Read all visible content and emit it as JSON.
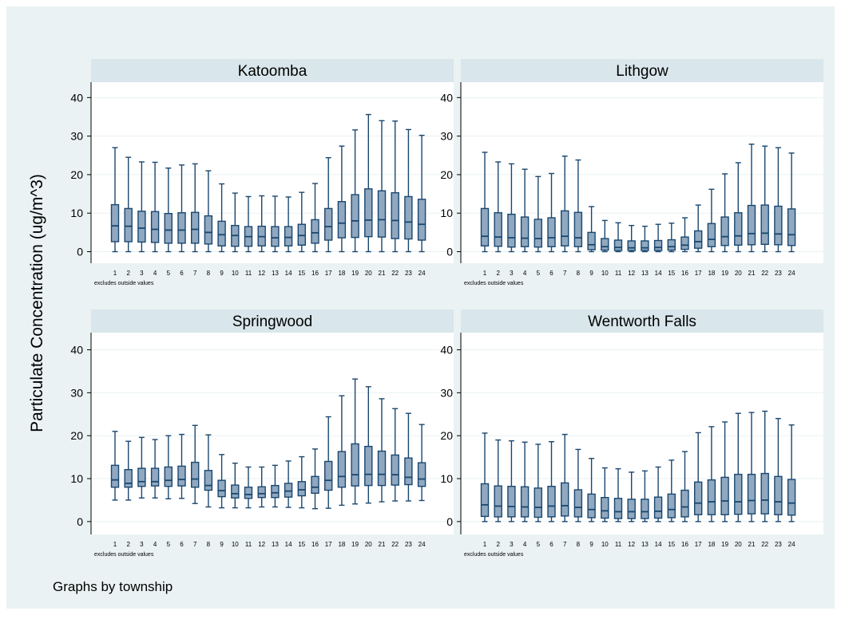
{
  "figure": {
    "ylabel": "Particulate Concentration (ug/m^3)",
    "footer": "Graphs by township",
    "note": "excludes outside values",
    "colors": {
      "outer_bg": "#eaf2f3",
      "panel_bg": "#ffffff",
      "title_bar": "#d9e6eb",
      "box_fill": "#90a8c0",
      "box_line": "#1a476f",
      "grid": "#eaf2f3",
      "axis": "#000000"
    }
  },
  "chart_data": [
    {
      "type": "box",
      "title": "Katoomba",
      "xlabel": "",
      "ylabel": "Particulate Concentration (ug/m^3)",
      "ylim": [
        -3,
        44
      ],
      "yticks": [
        0,
        10,
        20,
        30,
        40
      ],
      "grid": true,
      "categories": [
        "1",
        "2",
        "3",
        "4",
        "5",
        "6",
        "7",
        "8",
        "9",
        "10",
        "11",
        "12",
        "13",
        "14",
        "15",
        "16",
        "17",
        "18",
        "19",
        "20",
        "21",
        "22",
        "23",
        "24"
      ],
      "boxes": [
        {
          "min": 0,
          "q1": 2.6,
          "median": 6.7,
          "q3": 12.2,
          "max": 27.0
        },
        {
          "min": 0,
          "q1": 2.6,
          "median": 6.6,
          "q3": 11.2,
          "max": 24.5
        },
        {
          "min": 0,
          "q1": 2.5,
          "median": 6.1,
          "q3": 10.5,
          "max": 23.3
        },
        {
          "min": 0,
          "q1": 2.4,
          "median": 5.8,
          "q3": 10.4,
          "max": 23.2
        },
        {
          "min": 0,
          "q1": 2.2,
          "median": 5.6,
          "q3": 9.9,
          "max": 21.7
        },
        {
          "min": 0,
          "q1": 2.2,
          "median": 5.6,
          "q3": 10.1,
          "max": 22.5
        },
        {
          "min": 0,
          "q1": 2.2,
          "median": 5.8,
          "q3": 10.2,
          "max": 22.8
        },
        {
          "min": 0,
          "q1": 2.0,
          "median": 5.0,
          "q3": 9.3,
          "max": 21.0
        },
        {
          "min": 0,
          "q1": 1.5,
          "median": 4.4,
          "q3": 7.9,
          "max": 17.6
        },
        {
          "min": 0,
          "q1": 1.4,
          "median": 4.2,
          "q3": 6.8,
          "max": 15.2
        },
        {
          "min": 0,
          "q1": 1.4,
          "median": 3.9,
          "q3": 6.5,
          "max": 14.3
        },
        {
          "min": 0,
          "q1": 1.5,
          "median": 3.9,
          "q3": 6.6,
          "max": 14.5
        },
        {
          "min": 0,
          "q1": 1.4,
          "median": 3.6,
          "q3": 6.5,
          "max": 14.4
        },
        {
          "min": 0,
          "q1": 1.5,
          "median": 3.7,
          "q3": 6.5,
          "max": 14.2
        },
        {
          "min": 0,
          "q1": 1.7,
          "median": 4.2,
          "q3": 7.1,
          "max": 15.4
        },
        {
          "min": 0,
          "q1": 2.2,
          "median": 4.9,
          "q3": 8.3,
          "max": 17.7
        },
        {
          "min": 0,
          "q1": 3.0,
          "median": 6.5,
          "q3": 11.2,
          "max": 24.4
        },
        {
          "min": 0,
          "q1": 3.6,
          "median": 7.4,
          "q3": 13.0,
          "max": 27.4
        },
        {
          "min": 0,
          "q1": 3.7,
          "median": 8.0,
          "q3": 14.8,
          "max": 31.6
        },
        {
          "min": 0,
          "q1": 3.9,
          "median": 8.2,
          "q3": 16.3,
          "max": 35.6
        },
        {
          "min": 0,
          "q1": 3.8,
          "median": 8.3,
          "q3": 15.8,
          "max": 34.0
        },
        {
          "min": 0,
          "q1": 3.4,
          "median": 8.1,
          "q3": 15.3,
          "max": 33.9
        },
        {
          "min": 0,
          "q1": 3.3,
          "median": 7.7,
          "q3": 14.3,
          "max": 31.7
        },
        {
          "min": 0,
          "q1": 3.0,
          "median": 7.1,
          "q3": 13.6,
          "max": 30.2
        }
      ]
    },
    {
      "type": "box",
      "title": "Lithgow",
      "xlabel": "",
      "ylabel": "Particulate Concentration (ug/m^3)",
      "ylim": [
        -3,
        44
      ],
      "yticks": [
        0,
        10,
        20,
        30,
        40
      ],
      "grid": true,
      "categories": [
        "1",
        "2",
        "3",
        "4",
        "5",
        "6",
        "7",
        "8",
        "9",
        "10",
        "11",
        "12",
        "13",
        "14",
        "15",
        "16",
        "17",
        "18",
        "19",
        "20",
        "21",
        "22",
        "23",
        "24"
      ],
      "boxes": [
        {
          "min": 0,
          "q1": 1.5,
          "median": 4.0,
          "q3": 11.2,
          "max": 25.8
        },
        {
          "min": 0,
          "q1": 1.4,
          "median": 3.8,
          "q3": 10.1,
          "max": 23.3
        },
        {
          "min": 0,
          "q1": 1.2,
          "median": 3.6,
          "q3": 9.7,
          "max": 22.8
        },
        {
          "min": 0,
          "q1": 1.3,
          "median": 3.5,
          "q3": 9.0,
          "max": 21.4
        },
        {
          "min": 0,
          "q1": 1.2,
          "median": 3.4,
          "q3": 8.4,
          "max": 19.5
        },
        {
          "min": 0,
          "q1": 1.3,
          "median": 3.6,
          "q3": 8.8,
          "max": 20.3
        },
        {
          "min": 0,
          "q1": 1.5,
          "median": 4.0,
          "q3": 10.6,
          "max": 24.8
        },
        {
          "min": 0,
          "q1": 1.3,
          "median": 3.6,
          "q3": 10.2,
          "max": 23.8
        },
        {
          "min": 0,
          "q1": 0.5,
          "median": 1.8,
          "q3": 5.0,
          "max": 11.7
        },
        {
          "min": 0,
          "q1": 0.4,
          "median": 1.3,
          "q3": 3.4,
          "max": 8.1
        },
        {
          "min": 0,
          "q1": 0.3,
          "median": 1.1,
          "q3": 3.0,
          "max": 7.5
        },
        {
          "min": 0,
          "q1": 0.3,
          "median": 1.0,
          "q3": 2.8,
          "max": 6.8
        },
        {
          "min": 0,
          "q1": 0.3,
          "median": 1.0,
          "q3": 2.8,
          "max": 6.6
        },
        {
          "min": 0,
          "q1": 0.3,
          "median": 1.1,
          "q3": 2.9,
          "max": 7.1
        },
        {
          "min": 0,
          "q1": 0.4,
          "median": 1.3,
          "q3": 3.1,
          "max": 7.4
        },
        {
          "min": 0,
          "q1": 0.6,
          "median": 1.7,
          "q3": 3.8,
          "max": 8.8
        },
        {
          "min": 0,
          "q1": 0.9,
          "median": 2.6,
          "q3": 5.4,
          "max": 12.1
        },
        {
          "min": 0,
          "q1": 1.3,
          "median": 3.2,
          "q3": 7.3,
          "max": 16.2
        },
        {
          "min": 0,
          "q1": 1.6,
          "median": 3.9,
          "q3": 9.0,
          "max": 20.2
        },
        {
          "min": 0,
          "q1": 1.7,
          "median": 4.1,
          "q3": 10.1,
          "max": 23.1
        },
        {
          "min": 0,
          "q1": 1.8,
          "median": 4.7,
          "q3": 12.0,
          "max": 27.9
        },
        {
          "min": 0,
          "q1": 1.9,
          "median": 4.8,
          "q3": 12.1,
          "max": 27.4
        },
        {
          "min": 0,
          "q1": 1.8,
          "median": 4.6,
          "q3": 11.8,
          "max": 27.0
        },
        {
          "min": 0,
          "q1": 1.6,
          "median": 4.4,
          "q3": 11.1,
          "max": 25.6
        }
      ]
    },
    {
      "type": "box",
      "title": "Springwood",
      "xlabel": "",
      "ylabel": "Particulate Concentration (ug/m^3)",
      "ylim": [
        -3,
        44
      ],
      "yticks": [
        0,
        10,
        20,
        30,
        40
      ],
      "grid": true,
      "categories": [
        "1",
        "2",
        "3",
        "4",
        "5",
        "6",
        "7",
        "8",
        "9",
        "10",
        "11",
        "12",
        "13",
        "14",
        "15",
        "16",
        "17",
        "18",
        "19",
        "20",
        "21",
        "22",
        "23",
        "24"
      ],
      "boxes": [
        {
          "min": 5.0,
          "q1": 8.0,
          "median": 9.7,
          "q3": 13.1,
          "max": 21.0
        },
        {
          "min": 5.0,
          "q1": 8.0,
          "median": 8.9,
          "q3": 12.1,
          "max": 18.7
        },
        {
          "min": 5.5,
          "q1": 8.2,
          "median": 9.3,
          "q3": 12.4,
          "max": 19.6
        },
        {
          "min": 5.5,
          "q1": 8.3,
          "median": 9.3,
          "q3": 12.4,
          "max": 19.1
        },
        {
          "min": 5.3,
          "q1": 8.2,
          "median": 9.6,
          "q3": 12.7,
          "max": 20.0
        },
        {
          "min": 5.4,
          "q1": 8.3,
          "median": 9.8,
          "q3": 12.9,
          "max": 20.3
        },
        {
          "min": 4.2,
          "q1": 8.0,
          "median": 9.9,
          "q3": 13.8,
          "max": 22.4
        },
        {
          "min": 3.4,
          "q1": 7.3,
          "median": 8.4,
          "q3": 11.9,
          "max": 20.2
        },
        {
          "min": 3.2,
          "q1": 5.8,
          "median": 7.2,
          "q3": 9.6,
          "max": 15.6
        },
        {
          "min": 3.2,
          "q1": 5.5,
          "median": 6.5,
          "q3": 8.5,
          "max": 13.6
        },
        {
          "min": 3.2,
          "q1": 5.4,
          "median": 6.3,
          "q3": 8.0,
          "max": 12.7
        },
        {
          "min": 3.4,
          "q1": 5.6,
          "median": 6.5,
          "q3": 8.1,
          "max": 12.7
        },
        {
          "min": 3.4,
          "q1": 5.6,
          "median": 6.7,
          "q3": 8.4,
          "max": 13.1
        },
        {
          "min": 3.3,
          "q1": 5.7,
          "median": 7.1,
          "q3": 8.9,
          "max": 14.1
        },
        {
          "min": 3.2,
          "q1": 6.0,
          "median": 7.4,
          "q3": 9.3,
          "max": 15.1
        },
        {
          "min": 3.0,
          "q1": 6.6,
          "median": 8.0,
          "q3": 10.5,
          "max": 16.9
        },
        {
          "min": 3.1,
          "q1": 7.3,
          "median": 9.6,
          "q3": 14.0,
          "max": 24.4
        },
        {
          "min": 3.8,
          "q1": 8.0,
          "median": 10.5,
          "q3": 16.3,
          "max": 29.3
        },
        {
          "min": 4.1,
          "q1": 8.3,
          "median": 10.9,
          "q3": 18.1,
          "max": 33.2
        },
        {
          "min": 4.3,
          "q1": 8.4,
          "median": 11.0,
          "q3": 17.5,
          "max": 31.4
        },
        {
          "min": 4.6,
          "q1": 8.4,
          "median": 11.0,
          "q3": 16.4,
          "max": 28.6
        },
        {
          "min": 4.8,
          "q1": 8.5,
          "median": 10.9,
          "q3": 15.5,
          "max": 26.3
        },
        {
          "min": 4.8,
          "q1": 8.6,
          "median": 10.3,
          "q3": 14.8,
          "max": 25.2
        },
        {
          "min": 4.9,
          "q1": 8.2,
          "median": 9.9,
          "q3": 13.7,
          "max": 22.6
        }
      ]
    },
    {
      "type": "box",
      "title": "Wentworth Falls",
      "xlabel": "",
      "ylabel": "Particulate Concentration (ug/m^3)",
      "ylim": [
        -3,
        44
      ],
      "yticks": [
        0,
        10,
        20,
        30,
        40
      ],
      "grid": true,
      "categories": [
        "1",
        "2",
        "3",
        "4",
        "5",
        "6",
        "7",
        "8",
        "9",
        "10",
        "11",
        "12",
        "13",
        "14",
        "15",
        "16",
        "17",
        "18",
        "19",
        "20",
        "21",
        "22",
        "23",
        "24"
      ],
      "boxes": [
        {
          "min": 0,
          "q1": 1.2,
          "median": 3.9,
          "q3": 8.8,
          "max": 20.6
        },
        {
          "min": 0,
          "q1": 1.1,
          "median": 3.6,
          "q3": 8.3,
          "max": 19.0
        },
        {
          "min": 0,
          "q1": 1.1,
          "median": 3.5,
          "q3": 8.2,
          "max": 18.8
        },
        {
          "min": 0,
          "q1": 1.1,
          "median": 3.4,
          "q3": 8.1,
          "max": 18.5
        },
        {
          "min": 0,
          "q1": 1.0,
          "median": 3.3,
          "q3": 7.8,
          "max": 18.0
        },
        {
          "min": 0,
          "q1": 1.1,
          "median": 3.6,
          "q3": 8.2,
          "max": 18.6
        },
        {
          "min": 0,
          "q1": 1.3,
          "median": 3.7,
          "q3": 9.0,
          "max": 20.3
        },
        {
          "min": 0,
          "q1": 1.1,
          "median": 3.3,
          "q3": 7.4,
          "max": 16.8
        },
        {
          "min": 0,
          "q1": 0.9,
          "median": 2.8,
          "q3": 6.4,
          "max": 14.7
        },
        {
          "min": 0,
          "q1": 0.8,
          "median": 2.5,
          "q3": 5.6,
          "max": 12.5
        },
        {
          "min": 0,
          "q1": 0.7,
          "median": 2.3,
          "q3": 5.4,
          "max": 12.3
        },
        {
          "min": 0,
          "q1": 0.7,
          "median": 2.3,
          "q3": 5.2,
          "max": 11.5
        },
        {
          "min": 0,
          "q1": 0.7,
          "median": 2.3,
          "q3": 5.2,
          "max": 11.8
        },
        {
          "min": 0,
          "q1": 0.8,
          "median": 2.4,
          "q3": 5.7,
          "max": 12.7
        },
        {
          "min": 0,
          "q1": 0.9,
          "median": 2.8,
          "q3": 6.4,
          "max": 14.3
        },
        {
          "min": 0,
          "q1": 1.1,
          "median": 3.4,
          "q3": 7.3,
          "max": 16.3
        },
        {
          "min": 0,
          "q1": 1.6,
          "median": 4.3,
          "q3": 9.2,
          "max": 20.7
        },
        {
          "min": 0,
          "q1": 1.6,
          "median": 4.6,
          "q3": 9.7,
          "max": 22.1
        },
        {
          "min": 0,
          "q1": 1.6,
          "median": 4.8,
          "q3": 10.3,
          "max": 23.2
        },
        {
          "min": 0,
          "q1": 1.7,
          "median": 4.6,
          "q3": 11.0,
          "max": 25.2
        },
        {
          "min": 0,
          "q1": 1.8,
          "median": 4.9,
          "q3": 11.0,
          "max": 25.4
        },
        {
          "min": 0,
          "q1": 1.8,
          "median": 5.0,
          "q3": 11.2,
          "max": 25.7
        },
        {
          "min": 0,
          "q1": 1.6,
          "median": 4.6,
          "q3": 10.5,
          "max": 24.0
        },
        {
          "min": 0,
          "q1": 1.5,
          "median": 4.3,
          "q3": 9.8,
          "max": 22.5
        }
      ]
    }
  ]
}
